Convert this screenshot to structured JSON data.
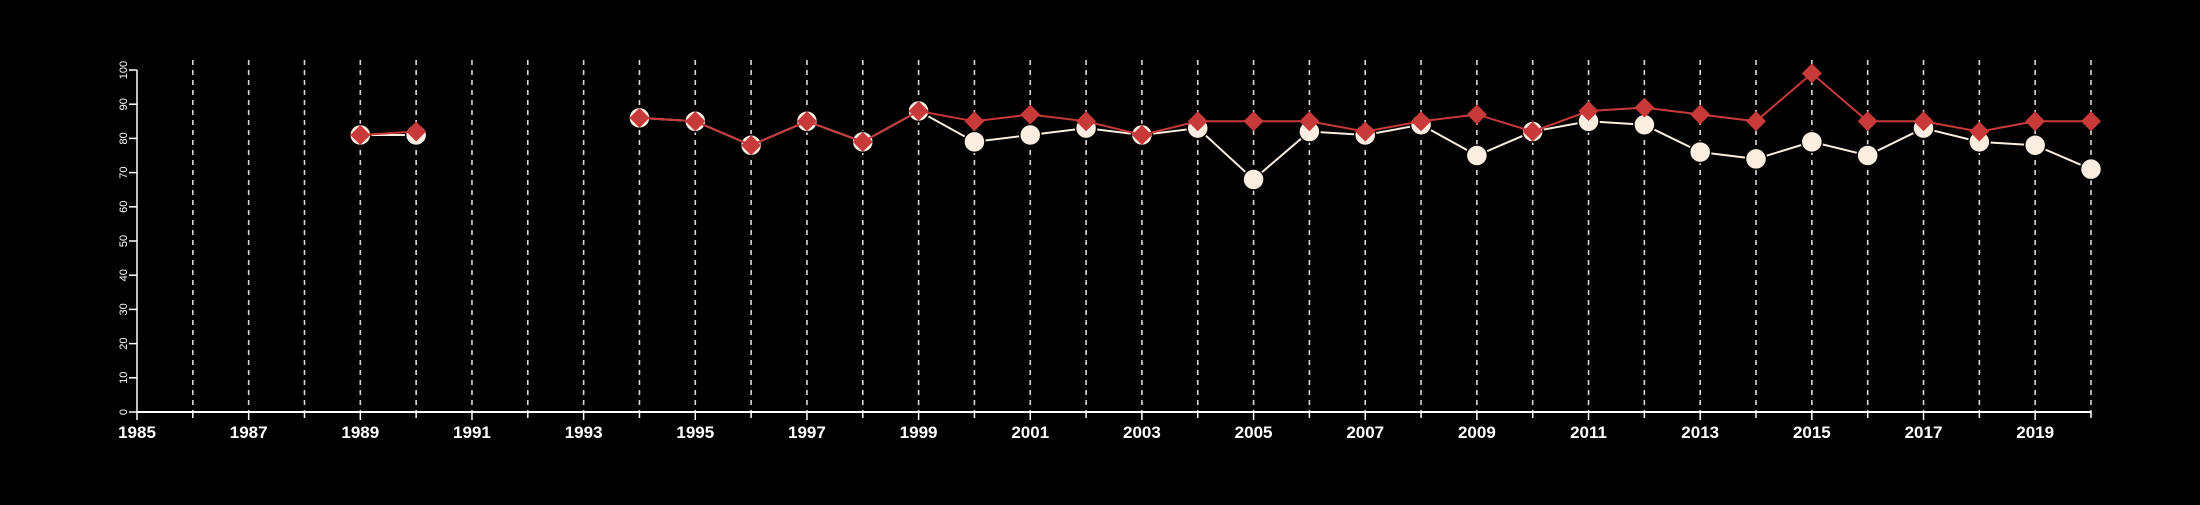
{
  "colors": {
    "background": "#000000",
    "axis": "#ffffff",
    "grid": "#d9d9d9",
    "series_white": "#fbeee0",
    "series_red": "#c8393a"
  },
  "chart_data": {
    "type": "line",
    "title": "",
    "xlabel": "",
    "ylabel": "",
    "xlim": [
      1985,
      2020
    ],
    "ylim": [
      0,
      100
    ],
    "x_ticks": [
      1985,
      1987,
      1989,
      1991,
      1993,
      1995,
      1997,
      1999,
      2001,
      2003,
      2005,
      2007,
      2009,
      2011,
      2013,
      2015,
      2017,
      2019
    ],
    "y_ticks": [
      0,
      10,
      20,
      30,
      40,
      50,
      60,
      70,
      80,
      90,
      100
    ],
    "grid": "vertical dashed lines at each year",
    "legend": "none",
    "x": [
      1985,
      1986,
      1987,
      1988,
      1989,
      1990,
      1991,
      1992,
      1993,
      1994,
      1995,
      1996,
      1997,
      1998,
      1999,
      2000,
      2001,
      2002,
      2003,
      2004,
      2005,
      2006,
      2007,
      2008,
      2009,
      2010,
      2011,
      2012,
      2013,
      2014,
      2015,
      2016,
      2017,
      2018,
      2019,
      2020
    ],
    "series": [
      {
        "marker": "circle",
        "color": "#fbeee0",
        "values": [
          null,
          null,
          null,
          null,
          81,
          81,
          null,
          null,
          null,
          86,
          85,
          78,
          85,
          79,
          88,
          79,
          81,
          83,
          81,
          83,
          68,
          82,
          81,
          84,
          75,
          82,
          85,
          84,
          76,
          74,
          79,
          75,
          83,
          79,
          78,
          71
        ]
      },
      {
        "marker": "diamond",
        "color": "#c8393a",
        "values": [
          null,
          null,
          null,
          null,
          81,
          82,
          null,
          null,
          null,
          86,
          85,
          78,
          85,
          79,
          88,
          85,
          87,
          85,
          81,
          85,
          85,
          85,
          82,
          85,
          87,
          82,
          88,
          89,
          87,
          85,
          99,
          85,
          85,
          82,
          85,
          85
        ]
      }
    ]
  }
}
